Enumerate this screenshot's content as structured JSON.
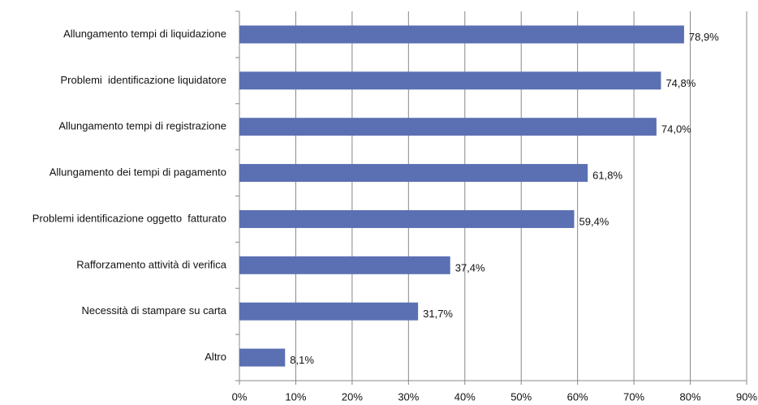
{
  "chart_data": {
    "type": "bar",
    "orientation": "horizontal",
    "categories": [
      "Allungamento tempi di liquidazione",
      "Problemi  identificazione liquidatore",
      "Allungamento tempi di registrazione",
      "Allungamento dei tempi di pagamento",
      "Problemi identificazione oggetto  fatturato",
      "Rafforzamento attività di verifica",
      "Necessità di stampare su carta",
      "Altro"
    ],
    "values": [
      78.9,
      74.8,
      74.0,
      61.8,
      59.4,
      37.4,
      31.7,
      8.1
    ],
    "value_labels": [
      "78,9%",
      "74,8%",
      "74,0%",
      "61,8%",
      "59,4%",
      "37,4%",
      "31,7%",
      "8,1%"
    ],
    "color": "#5b70b3",
    "xlim": [
      0,
      90
    ],
    "xticks": [
      {
        "value": 0,
        "label": "0%"
      },
      {
        "value": 10,
        "label": "10%"
      },
      {
        "value": 20,
        "label": "20%"
      },
      {
        "value": 30,
        "label": "30%"
      },
      {
        "value": 40,
        "label": "40%"
      },
      {
        "value": 50,
        "label": "50%"
      },
      {
        "value": 60,
        "label": "60%"
      },
      {
        "value": 70,
        "label": "70%"
      },
      {
        "value": 80,
        "label": "80%"
      },
      {
        "value": 90,
        "label": "90%"
      }
    ],
    "grid": true
  }
}
